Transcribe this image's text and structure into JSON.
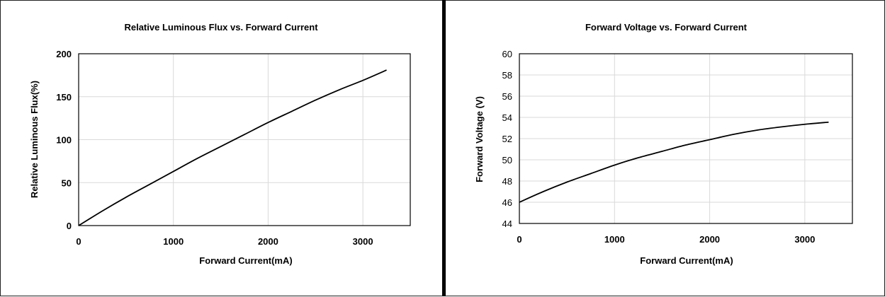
{
  "chart_data": [
    {
      "type": "line",
      "title": "Relative Luminous Flux vs. Forward Current",
      "xlabel": "Forward Current(mA)",
      "ylabel": "Relative Luminous Flux(%)",
      "xlim": [
        0,
        3500
      ],
      "ylim": [
        0,
        200
      ],
      "xticks": [
        0,
        1000,
        2000,
        3000
      ],
      "yticks": [
        0,
        50,
        100,
        150,
        200
      ],
      "grid": true,
      "series": [
        {
          "x": [
            0,
            250,
            500,
            750,
            1000,
            1250,
            1500,
            1750,
            2000,
            2250,
            2500,
            2750,
            3000,
            3250
          ],
          "y": [
            0,
            17,
            33,
            48,
            63,
            78,
            92,
            106,
            120,
            133,
            146,
            158,
            169,
            181
          ]
        }
      ]
    },
    {
      "type": "line",
      "title": "Forward Voltage vs. Forward Current",
      "xlabel": "Forward Current(mA)",
      "ylabel": "Forward Voltage (V)",
      "xlim": [
        0,
        3500
      ],
      "ylim": [
        44,
        60
      ],
      "xticks": [
        0,
        1000,
        2000,
        3000
      ],
      "yticks": [
        44,
        46,
        48,
        50,
        52,
        54,
        56,
        58,
        60
      ],
      "grid": true,
      "series": [
        {
          "x": [
            0,
            250,
            500,
            750,
            1000,
            1250,
            1500,
            1750,
            2000,
            2250,
            2500,
            2750,
            3000,
            3250
          ],
          "y": [
            46.0,
            47.0,
            47.9,
            48.7,
            49.5,
            50.2,
            50.8,
            51.4,
            51.9,
            52.4,
            52.8,
            53.1,
            53.35,
            53.55
          ]
        }
      ]
    }
  ]
}
